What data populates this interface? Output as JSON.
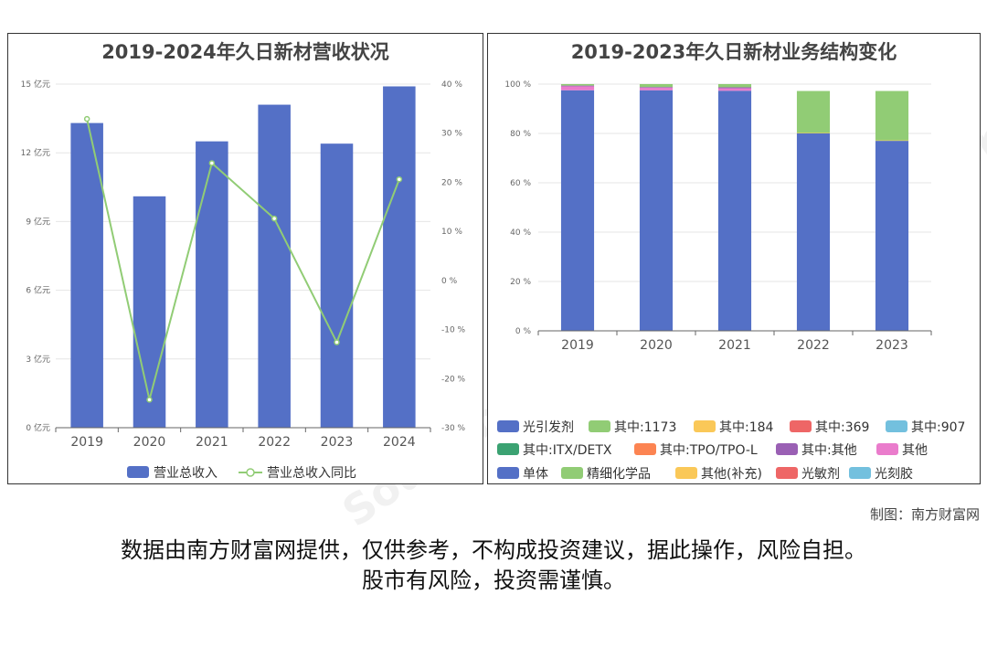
{
  "chart_data": [
    {
      "type": "bar",
      "title": "2019-2024年久日新材营收状况",
      "categories": [
        "2019",
        "2020",
        "2021",
        "2022",
        "2023",
        "2024"
      ],
      "series": [
        {
          "name": "营业总收入",
          "type": "bar",
          "axis": "left",
          "values": [
            13.3,
            10.1,
            12.5,
            14.1,
            12.4,
            14.9
          ],
          "color": "#5470c6"
        },
        {
          "name": "营业总收入同比",
          "type": "line",
          "axis": "right",
          "values": [
            32.9,
            -24.3,
            23.9,
            12.6,
            -12.6,
            20.6
          ],
          "color": "#91cc75"
        }
      ],
      "y_left": {
        "ylim": [
          0,
          15
        ],
        "ticks": [
          0,
          3,
          6,
          9,
          12,
          15
        ],
        "tick_labels": [
          "0 亿元",
          "3 亿元",
          "6 亿元",
          "9 亿元",
          "12 亿元",
          "15 亿元"
        ]
      },
      "y_right": {
        "ylim": [
          -30,
          40
        ],
        "ticks": [
          -30,
          -20,
          -10,
          0,
          10,
          20,
          30,
          40
        ],
        "tick_labels": [
          "-30 %",
          "-20 %",
          "-10 %",
          "0 %",
          "10 %",
          "20 %",
          "30 %",
          "40 %"
        ]
      },
      "grid": true,
      "legend_position": "bottom"
    },
    {
      "type": "bar",
      "stacked": true,
      "title": "2019-2023年久日新材业务结构变化",
      "categories": [
        "2019",
        "2020",
        "2021",
        "2022",
        "2023"
      ],
      "series": [
        {
          "name": "光引发剂",
          "color": "#5470c6",
          "values": [
            97.5,
            97.5,
            97.3,
            0,
            0
          ]
        },
        {
          "name": "其中:1173",
          "color": "#91cc75",
          "values": [
            0,
            0,
            0,
            0,
            0
          ]
        },
        {
          "name": "其中:184",
          "color": "#fac858",
          "values": [
            0,
            0,
            0,
            0,
            0
          ]
        },
        {
          "name": "其中:369",
          "color": "#ee6666",
          "values": [
            0,
            0,
            0,
            0,
            0
          ]
        },
        {
          "name": "其中:907",
          "color": "#73c0de",
          "values": [
            0,
            0,
            0,
            0,
            0
          ]
        },
        {
          "name": "其中:ITX/DETX",
          "color": "#3ba272",
          "values": [
            0,
            0,
            0,
            0,
            0
          ]
        },
        {
          "name": "其中:TPO/TPO-L",
          "color": "#fc8452",
          "values": [
            0,
            0,
            0,
            0,
            0
          ]
        },
        {
          "name": "其中:其他",
          "color": "#9a60b4",
          "values": [
            0.3,
            0.3,
            0.4,
            0,
            0
          ]
        },
        {
          "name": "其他",
          "color": "#ea7ccc",
          "values": [
            1.6,
            1.0,
            1.0,
            0,
            0
          ]
        },
        {
          "name": "单体",
          "color": "#5470c6",
          "values": [
            0,
            0,
            0,
            80.0,
            77.0
          ]
        },
        {
          "name": "精细化学品",
          "color": "#91cc75",
          "values": [
            0.6,
            1.2,
            1.3,
            17.0,
            20.0
          ]
        },
        {
          "name": "其他(补充)",
          "color": "#fac858",
          "values": [
            0,
            0,
            0,
            0.2,
            0.2
          ]
        },
        {
          "name": "光敏剂",
          "color": "#ee6666",
          "values": [
            0,
            0,
            0,
            0,
            0
          ]
        },
        {
          "name": "光刻胶",
          "color": "#73c0de",
          "values": [
            0,
            0,
            0,
            0,
            0
          ]
        }
      ],
      "segments_drawn": [
        {
          "name": "其他",
          "color": "#ea7ccc"
        },
        {
          "name": "其中:其他",
          "color": "#9a60b4"
        }
      ],
      "ylim": [
        0,
        100
      ],
      "ticks": [
        0,
        20,
        40,
        60,
        80,
        100
      ],
      "tick_labels": [
        "0 %",
        "20 %",
        "40 %",
        "60 %",
        "80 %",
        "100 %"
      ],
      "grid": true,
      "legend_position": "bottom"
    }
  ],
  "watermark": {
    "text_cn": "南方财富网",
    "text_en": "Southmoney.com"
  },
  "credit": "制图：南方财富网",
  "disclaimer": {
    "line1": "数据由南方财富网提供，仅供参考，不构成投资建议，据此操作，风险自担。",
    "line2": "股市有风险，投资需谨慎。"
  }
}
